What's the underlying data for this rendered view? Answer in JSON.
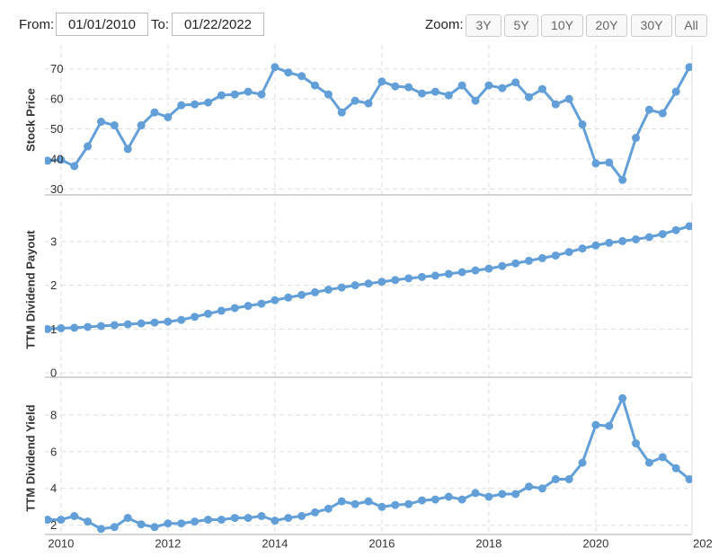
{
  "controls": {
    "from_label": "From:",
    "from_value": "01/01/2010",
    "to_label": "To:",
    "to_value": "01/22/2022",
    "zoom_label": "Zoom:",
    "zoom_buttons": [
      "3Y",
      "5Y",
      "10Y",
      "20Y",
      "30Y",
      "All"
    ]
  },
  "chart_data": [
    {
      "type": "line",
      "y_label": "Stock Price",
      "color": "#629fd9",
      "grid": true,
      "x": [
        2009.75,
        2010,
        2010.25,
        2010.5,
        2010.75,
        2011,
        2011.25,
        2011.5,
        2011.75,
        2012,
        2012.25,
        2012.5,
        2012.75,
        2013,
        2013.25,
        2013.5,
        2013.75,
        2014,
        2014.25,
        2014.5,
        2014.75,
        2015,
        2015.25,
        2015.5,
        2015.75,
        2016,
        2016.25,
        2016.5,
        2016.75,
        2017,
        2017.25,
        2017.5,
        2017.75,
        2018,
        2018.25,
        2018.5,
        2018.75,
        2019,
        2019.25,
        2019.5,
        2019.75,
        2020,
        2020.25,
        2020.5,
        2020.75,
        2021,
        2021.25,
        2021.5,
        2021.75
      ],
      "xlim": [
        2009.7,
        2021.8
      ],
      "series": [
        {
          "name": "Stock Price",
          "color": "#629fd9",
          "values": [
            39.4,
            39.7,
            37.6,
            44.2,
            52.4,
            51.2,
            43.3,
            51.2,
            55.5,
            53.9,
            57.9,
            58.2,
            58.8,
            61.2,
            61.5,
            62.4,
            61.5,
            70.6,
            68.8,
            67.6,
            64.5,
            61.5,
            55.5,
            59.4,
            58.5,
            65.8,
            64.2,
            63.9,
            61.8,
            62.4,
            61.2,
            64.5,
            59.4,
            64.5,
            63.6,
            65.5,
            60.6,
            63.3,
            58.2,
            60.0,
            51.5,
            38.5,
            38.8,
            33.0,
            47.0,
            56.4,
            55.2,
            62.4,
            70.6
          ]
        }
      ],
      "ylim": [
        28,
        78
      ],
      "yticks": [
        30,
        40,
        50,
        60,
        70
      ]
    },
    {
      "type": "line",
      "y_label": "TTM Dividend Payout",
      "color": "#629fd9",
      "grid": true,
      "x": [
        2009.75,
        2010,
        2010.25,
        2010.5,
        2010.75,
        2011,
        2011.25,
        2011.5,
        2011.75,
        2012,
        2012.25,
        2012.5,
        2012.75,
        2013,
        2013.25,
        2013.5,
        2013.75,
        2014,
        2014.25,
        2014.5,
        2014.75,
        2015,
        2015.25,
        2015.5,
        2015.75,
        2016,
        2016.25,
        2016.5,
        2016.75,
        2017,
        2017.25,
        2017.5,
        2017.75,
        2018,
        2018.25,
        2018.5,
        2018.75,
        2019,
        2019.25,
        2019.5,
        2019.75,
        2020,
        2020.25,
        2020.5,
        2020.75,
        2021,
        2021.25,
        2021.5,
        2021.75
      ],
      "xlim": [
        2009.7,
        2021.8
      ],
      "series": [
        {
          "name": "TTM Dividend Payout",
          "color": "#629fd9",
          "values": [
            1.0,
            1.02,
            1.03,
            1.05,
            1.07,
            1.09,
            1.11,
            1.13,
            1.15,
            1.17,
            1.21,
            1.28,
            1.35,
            1.42,
            1.48,
            1.53,
            1.58,
            1.66,
            1.72,
            1.78,
            1.84,
            1.9,
            1.95,
            2.0,
            2.04,
            2.08,
            2.12,
            2.16,
            2.19,
            2.22,
            2.26,
            2.3,
            2.34,
            2.38,
            2.44,
            2.5,
            2.56,
            2.62,
            2.68,
            2.76,
            2.84,
            2.91,
            2.97,
            3.01,
            3.05,
            3.1,
            3.17,
            3.26,
            3.35
          ]
        }
      ],
      "ylim": [
        -0.1,
        3.9
      ],
      "yticks": [
        0,
        1,
        2,
        3
      ]
    },
    {
      "type": "line",
      "y_label": "TTM Dividend Yield",
      "color": "#629fd9",
      "grid": true,
      "x": [
        2009.75,
        2010,
        2010.25,
        2010.5,
        2010.75,
        2011,
        2011.25,
        2011.5,
        2011.75,
        2012,
        2012.25,
        2012.5,
        2012.75,
        2013,
        2013.25,
        2013.5,
        2013.75,
        2014,
        2014.25,
        2014.5,
        2014.75,
        2015,
        2015.25,
        2015.5,
        2015.75,
        2016,
        2016.25,
        2016.5,
        2016.75,
        2017,
        2017.25,
        2017.5,
        2017.75,
        2018,
        2018.25,
        2018.5,
        2018.75,
        2019,
        2019.25,
        2019.5,
        2019.75,
        2020,
        2020.25,
        2020.5,
        2020.75,
        2021,
        2021.25,
        2021.5,
        2021.75
      ],
      "xlim": [
        2009.7,
        2021.8
      ],
      "xticks": [
        2010,
        2012,
        2014,
        2016,
        2018,
        2020,
        {
          "value": 2022,
          "label": "202"
        }
      ],
      "series": [
        {
          "name": "TTM Dividend Yield",
          "color": "#629fd9",
          "values": [
            2.3,
            2.3,
            2.5,
            2.2,
            1.8,
            1.9,
            2.4,
            2.05,
            1.9,
            2.1,
            2.1,
            2.2,
            2.3,
            2.3,
            2.4,
            2.4,
            2.5,
            2.25,
            2.4,
            2.5,
            2.7,
            2.9,
            3.3,
            3.15,
            3.3,
            3.0,
            3.1,
            3.15,
            3.35,
            3.4,
            3.55,
            3.4,
            3.75,
            3.55,
            3.7,
            3.7,
            4.1,
            4.0,
            4.5,
            4.5,
            5.4,
            7.45,
            7.4,
            8.9,
            6.45,
            5.4,
            5.7,
            5.1,
            4.5
          ]
        }
      ],
      "ylim": [
        1.5,
        9.8
      ],
      "yticks": [
        2,
        4,
        6,
        8
      ]
    }
  ]
}
